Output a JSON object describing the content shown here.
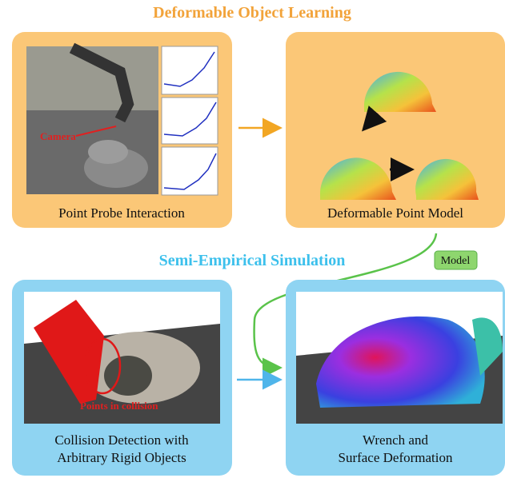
{
  "top_title": "Deformable Object Learning",
  "bottom_title": "Semi-Empirical Simulation",
  "panels": [
    {
      "caption": [
        "Point Probe Interaction"
      ],
      "annotation": "Camera"
    },
    {
      "caption": [
        "Deformable Point Model"
      ]
    },
    {
      "caption": [
        "Collision Detection with",
        "Arbitrary Rigid Objects"
      ],
      "annotation": "Points in collision"
    },
    {
      "caption": [
        "Wrench and",
        "Surface Deformation"
      ]
    }
  ],
  "edge_label": "Model"
}
